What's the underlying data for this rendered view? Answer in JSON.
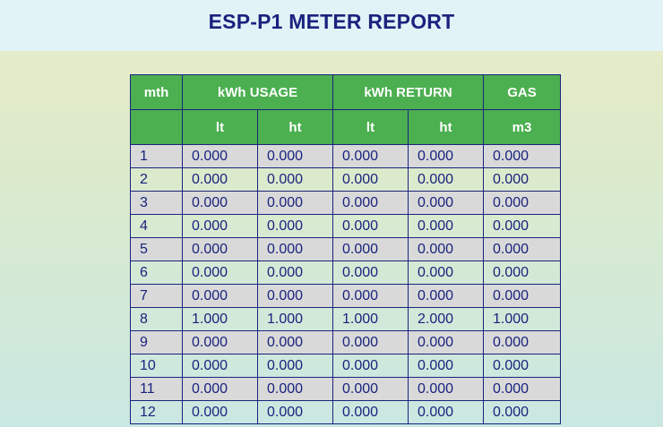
{
  "page": {
    "title": "ESP-P1 METER REPORT"
  },
  "table": {
    "header_row1": {
      "mth": "mth",
      "usage": "kWh USAGE",
      "return": "kWh RETURN",
      "gas": "GAS"
    },
    "header_row2": {
      "usage_lt": "lt",
      "usage_ht": "ht",
      "return_lt": "lt",
      "return_ht": "ht",
      "gas_unit": "m3"
    },
    "rows": [
      {
        "mth": "1",
        "usage_lt": "0.000",
        "usage_ht": "0.000",
        "return_lt": "0.000",
        "return_ht": "0.000",
        "gas": "0.000"
      },
      {
        "mth": "2",
        "usage_lt": "0.000",
        "usage_ht": "0.000",
        "return_lt": "0.000",
        "return_ht": "0.000",
        "gas": "0.000"
      },
      {
        "mth": "3",
        "usage_lt": "0.000",
        "usage_ht": "0.000",
        "return_lt": "0.000",
        "return_ht": "0.000",
        "gas": "0.000"
      },
      {
        "mth": "4",
        "usage_lt": "0.000",
        "usage_ht": "0.000",
        "return_lt": "0.000",
        "return_ht": "0.000",
        "gas": "0.000"
      },
      {
        "mth": "5",
        "usage_lt": "0.000",
        "usage_ht": "0.000",
        "return_lt": "0.000",
        "return_ht": "0.000",
        "gas": "0.000"
      },
      {
        "mth": "6",
        "usage_lt": "0.000",
        "usage_ht": "0.000",
        "return_lt": "0.000",
        "return_ht": "0.000",
        "gas": "0.000"
      },
      {
        "mth": "7",
        "usage_lt": "0.000",
        "usage_ht": "0.000",
        "return_lt": "0.000",
        "return_ht": "0.000",
        "gas": "0.000"
      },
      {
        "mth": "8",
        "usage_lt": "1.000",
        "usage_ht": "1.000",
        "return_lt": "1.000",
        "return_ht": "2.000",
        "gas": "1.000"
      },
      {
        "mth": "9",
        "usage_lt": "0.000",
        "usage_ht": "0.000",
        "return_lt": "0.000",
        "return_ht": "0.000",
        "gas": "0.000"
      },
      {
        "mth": "10",
        "usage_lt": "0.000",
        "usage_ht": "0.000",
        "return_lt": "0.000",
        "return_ht": "0.000",
        "gas": "0.000"
      },
      {
        "mth": "11",
        "usage_lt": "0.000",
        "usage_ht": "0.000",
        "return_lt": "0.000",
        "return_ht": "0.000",
        "gas": "0.000"
      },
      {
        "mth": "12",
        "usage_lt": "0.000",
        "usage_ht": "0.000",
        "return_lt": "0.000",
        "return_ht": "0.000",
        "gas": "0.000"
      }
    ]
  },
  "colors": {
    "header_green": "#4caf50",
    "title_navy": "#1a237e",
    "row_gray": "#d9d9d9"
  }
}
